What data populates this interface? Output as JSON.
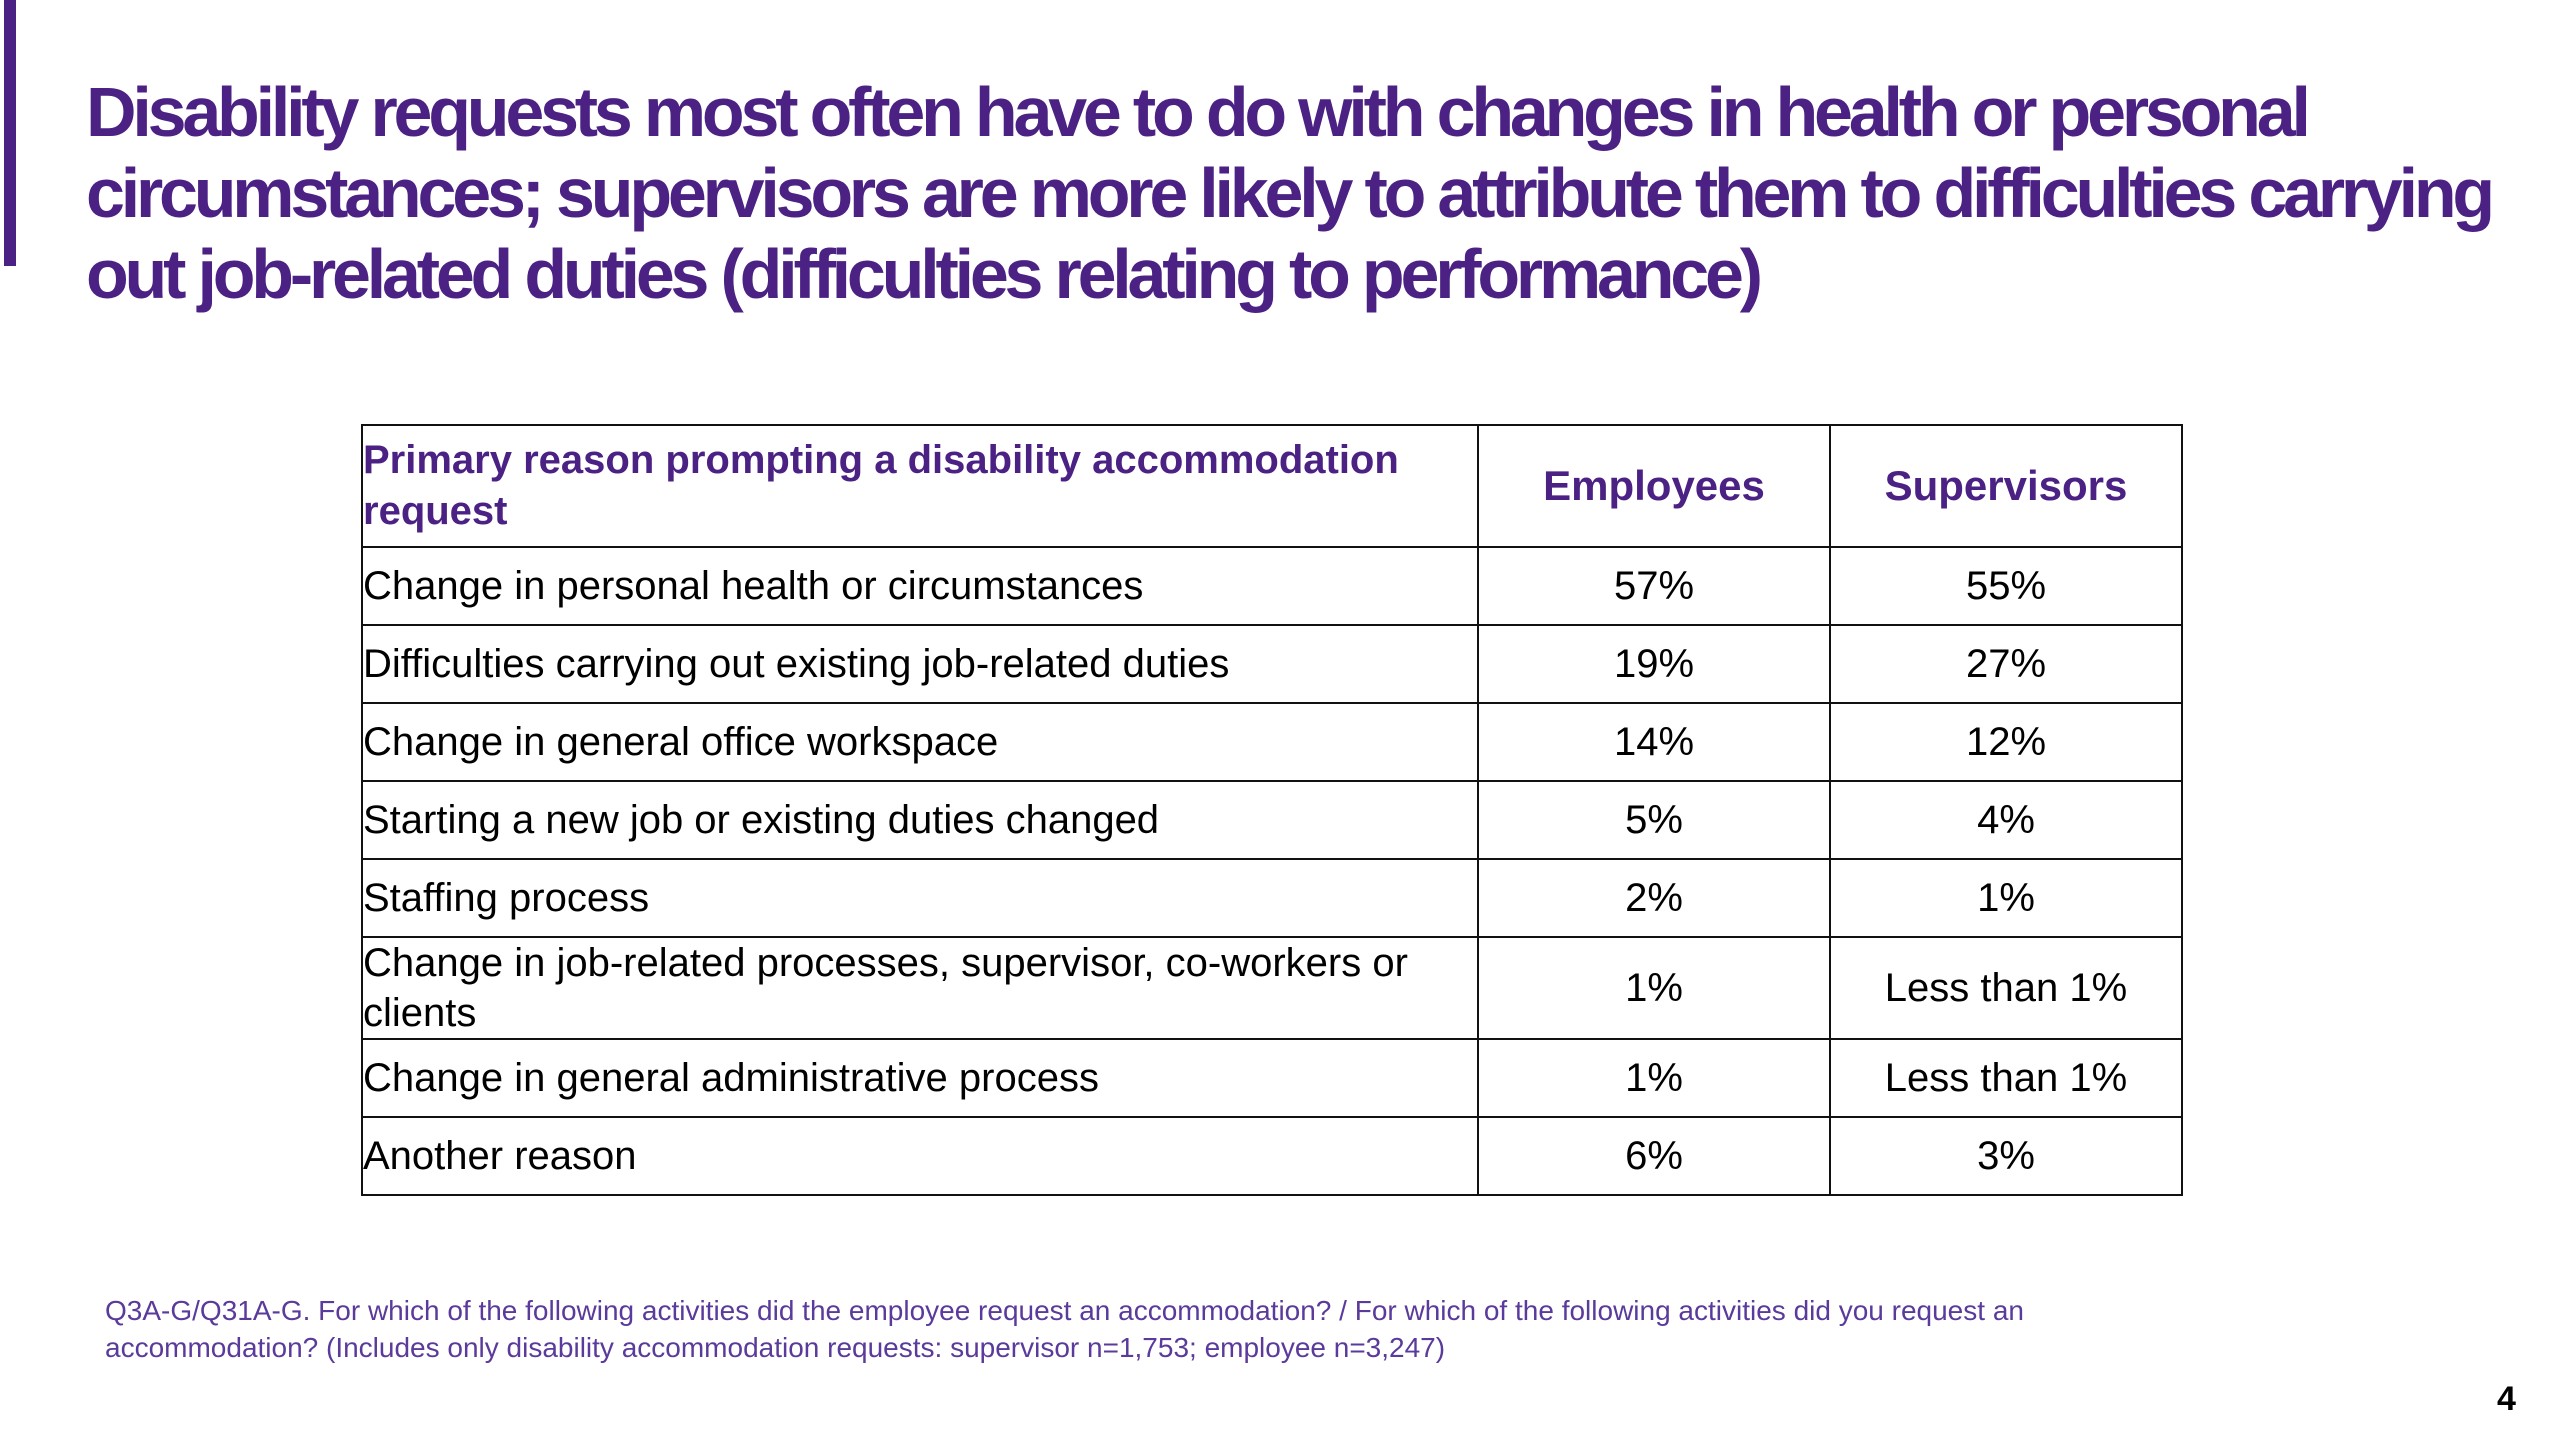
{
  "slide": {
    "title": "Disability requests most often have to do with changes in health or personal circumstances; supervisors are more likely to attribute them to difficulties carrying out job-related duties (difficulties relating to performance)",
    "page_number": "4",
    "accent_color": "#4b2184"
  },
  "table": {
    "headers": {
      "reason": "Primary reason prompting a disability accommodation request",
      "employees": "Employees",
      "supervisors": "Supervisors"
    },
    "rows": [
      {
        "reason": "Change in personal health or circumstances",
        "employees": "57%",
        "supervisors": "55%"
      },
      {
        "reason": "Difficulties carrying out existing job-related duties",
        "employees": "19%",
        "supervisors": "27%"
      },
      {
        "reason": "Change in general office workspace",
        "employees": "14%",
        "supervisors": "12%"
      },
      {
        "reason": "Starting a new job or existing duties changed",
        "employees": "5%",
        "supervisors": "4%"
      },
      {
        "reason": "Staffing process",
        "employees": "2%",
        "supervisors": "1%"
      },
      {
        "reason": "Change in job-related processes, supervisor, co-workers or clients",
        "employees": "1%",
        "supervisors": "Less than 1%"
      },
      {
        "reason": "Change in general administrative process",
        "employees": "1%",
        "supervisors": "Less than 1%"
      },
      {
        "reason": "Another reason",
        "employees": "6%",
        "supervisors": "3%"
      }
    ]
  },
  "footnote": "Q3A-G/Q31A-G. For which of the following activities did the employee request an accommodation? / For which of the following activities did you request an accommodation? (Includes only disability accommodation requests: supervisor n=1,753; employee n=3,247)"
}
